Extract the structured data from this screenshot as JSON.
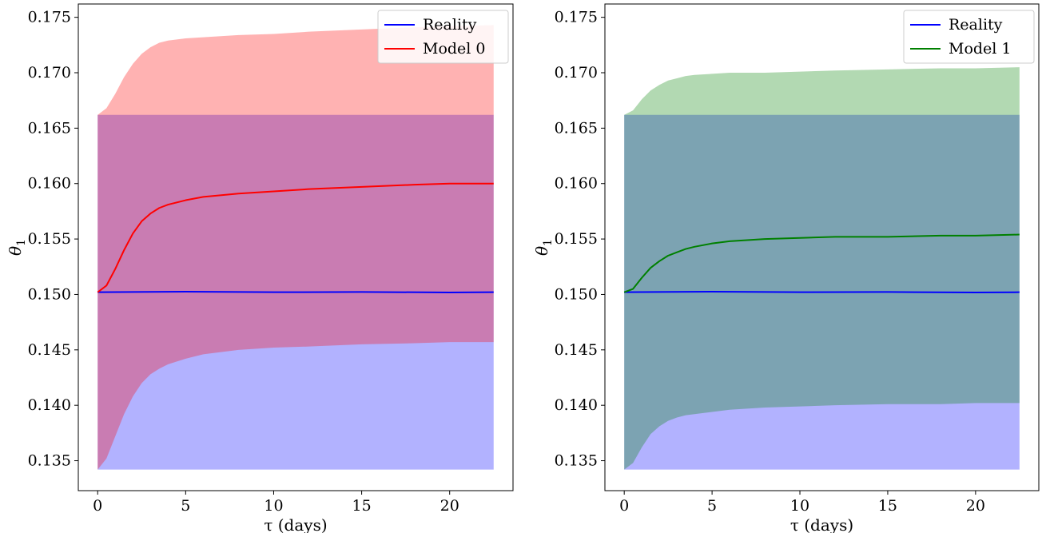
{
  "chart_data": [
    {
      "type": "line",
      "xlabel": "τ (days)",
      "ylabel": "θ",
      "ylabel_subscript": "1",
      "xlim": [
        -1.1,
        23.6
      ],
      "ylim": [
        0.1323,
        0.1762
      ],
      "xticks": [
        0,
        5,
        10,
        15,
        20
      ],
      "yticks": [
        0.135,
        0.14,
        0.145,
        0.15,
        0.155,
        0.16,
        0.165,
        0.17,
        0.175
      ],
      "legend": "top-right",
      "grid": false,
      "bands": [
        {
          "color": "#0000ff",
          "opacity": 0.3,
          "x": [
            0,
            22.5
          ],
          "lower": [
            0.1342,
            0.1342
          ],
          "upper": [
            0.1662,
            0.1662
          ]
        },
        {
          "color": "#ff0000",
          "opacity": 0.3,
          "x": [
            0,
            0.5,
            1,
            1.5,
            2,
            2.5,
            3,
            3.5,
            4,
            5,
            6,
            8,
            10,
            12,
            15,
            18,
            20,
            22.5
          ],
          "lower": [
            0.1342,
            0.1352,
            0.1372,
            0.1392,
            0.1408,
            0.142,
            0.1428,
            0.1433,
            0.1437,
            0.1442,
            0.1446,
            0.145,
            0.1452,
            0.1453,
            0.1455,
            0.1456,
            0.1457,
            0.1457
          ],
          "upper": [
            0.1662,
            0.1668,
            0.1681,
            0.1696,
            0.1708,
            0.1717,
            0.1723,
            0.1727,
            0.1729,
            0.1731,
            0.1732,
            0.1734,
            0.1735,
            0.1737,
            0.1739,
            0.1741,
            0.1742,
            0.1743
          ]
        }
      ],
      "series": [
        {
          "name": "Reality",
          "color": "#0000ff",
          "x": [
            0,
            5,
            10,
            15,
            20,
            22.5
          ],
          "values": [
            0.1502,
            0.15025,
            0.1502,
            0.15022,
            0.15018,
            0.1502
          ]
        },
        {
          "name": "Model 0",
          "color": "#ff0000",
          "x": [
            0,
            0.5,
            1,
            1.5,
            2,
            2.5,
            3,
            3.5,
            4,
            5,
            6,
            8,
            10,
            12,
            15,
            18,
            20,
            22.5
          ],
          "values": [
            0.1502,
            0.1508,
            0.1523,
            0.154,
            0.1555,
            0.1566,
            0.1573,
            0.1578,
            0.1581,
            0.1585,
            0.1588,
            0.1591,
            0.1593,
            0.1595,
            0.1597,
            0.1599,
            0.16,
            0.16
          ]
        }
      ]
    },
    {
      "type": "line",
      "xlabel": "τ (days)",
      "ylabel": "θ",
      "ylabel_subscript": "1",
      "xlim": [
        -1.1,
        23.6
      ],
      "ylim": [
        0.1323,
        0.1762
      ],
      "xticks": [
        0,
        5,
        10,
        15,
        20
      ],
      "yticks": [
        0.135,
        0.14,
        0.145,
        0.15,
        0.155,
        0.16,
        0.165,
        0.17,
        0.175
      ],
      "legend": "top-right",
      "grid": false,
      "bands": [
        {
          "color": "#0000ff",
          "opacity": 0.3,
          "x": [
            0,
            22.5
          ],
          "lower": [
            0.1342,
            0.1342
          ],
          "upper": [
            0.1662,
            0.1662
          ]
        },
        {
          "color": "#008000",
          "opacity": 0.3,
          "x": [
            0,
            0.5,
            1,
            1.5,
            2,
            2.5,
            3,
            3.5,
            4,
            5,
            6,
            8,
            10,
            12,
            15,
            18,
            20,
            22.5
          ],
          "lower": [
            0.1342,
            0.1348,
            0.1362,
            0.1374,
            0.1381,
            0.1386,
            0.1389,
            0.1391,
            0.1392,
            0.1394,
            0.1396,
            0.1398,
            0.1399,
            0.14,
            0.1401,
            0.1401,
            0.1402,
            0.1402
          ],
          "upper": [
            0.1662,
            0.1666,
            0.1676,
            0.1684,
            0.1689,
            0.1693,
            0.1695,
            0.1697,
            0.1698,
            0.1699,
            0.17,
            0.17,
            0.1701,
            0.1702,
            0.1703,
            0.1704,
            0.1704,
            0.1705
          ]
        }
      ],
      "series": [
        {
          "name": "Reality",
          "color": "#0000ff",
          "x": [
            0,
            5,
            10,
            15,
            20,
            22.5
          ],
          "values": [
            0.1502,
            0.15025,
            0.1502,
            0.15022,
            0.15018,
            0.1502
          ]
        },
        {
          "name": "Model 1",
          "color": "#008000",
          "x": [
            0,
            0.5,
            1,
            1.5,
            2,
            2.5,
            3,
            3.5,
            4,
            5,
            6,
            8,
            10,
            12,
            15,
            18,
            20,
            22.5
          ],
          "values": [
            0.1502,
            0.1505,
            0.1515,
            0.1524,
            0.153,
            0.1535,
            0.1538,
            0.1541,
            0.1543,
            0.1546,
            0.1548,
            0.155,
            0.1551,
            0.1552,
            0.1552,
            0.1553,
            0.1553,
            0.1554
          ]
        }
      ]
    }
  ]
}
